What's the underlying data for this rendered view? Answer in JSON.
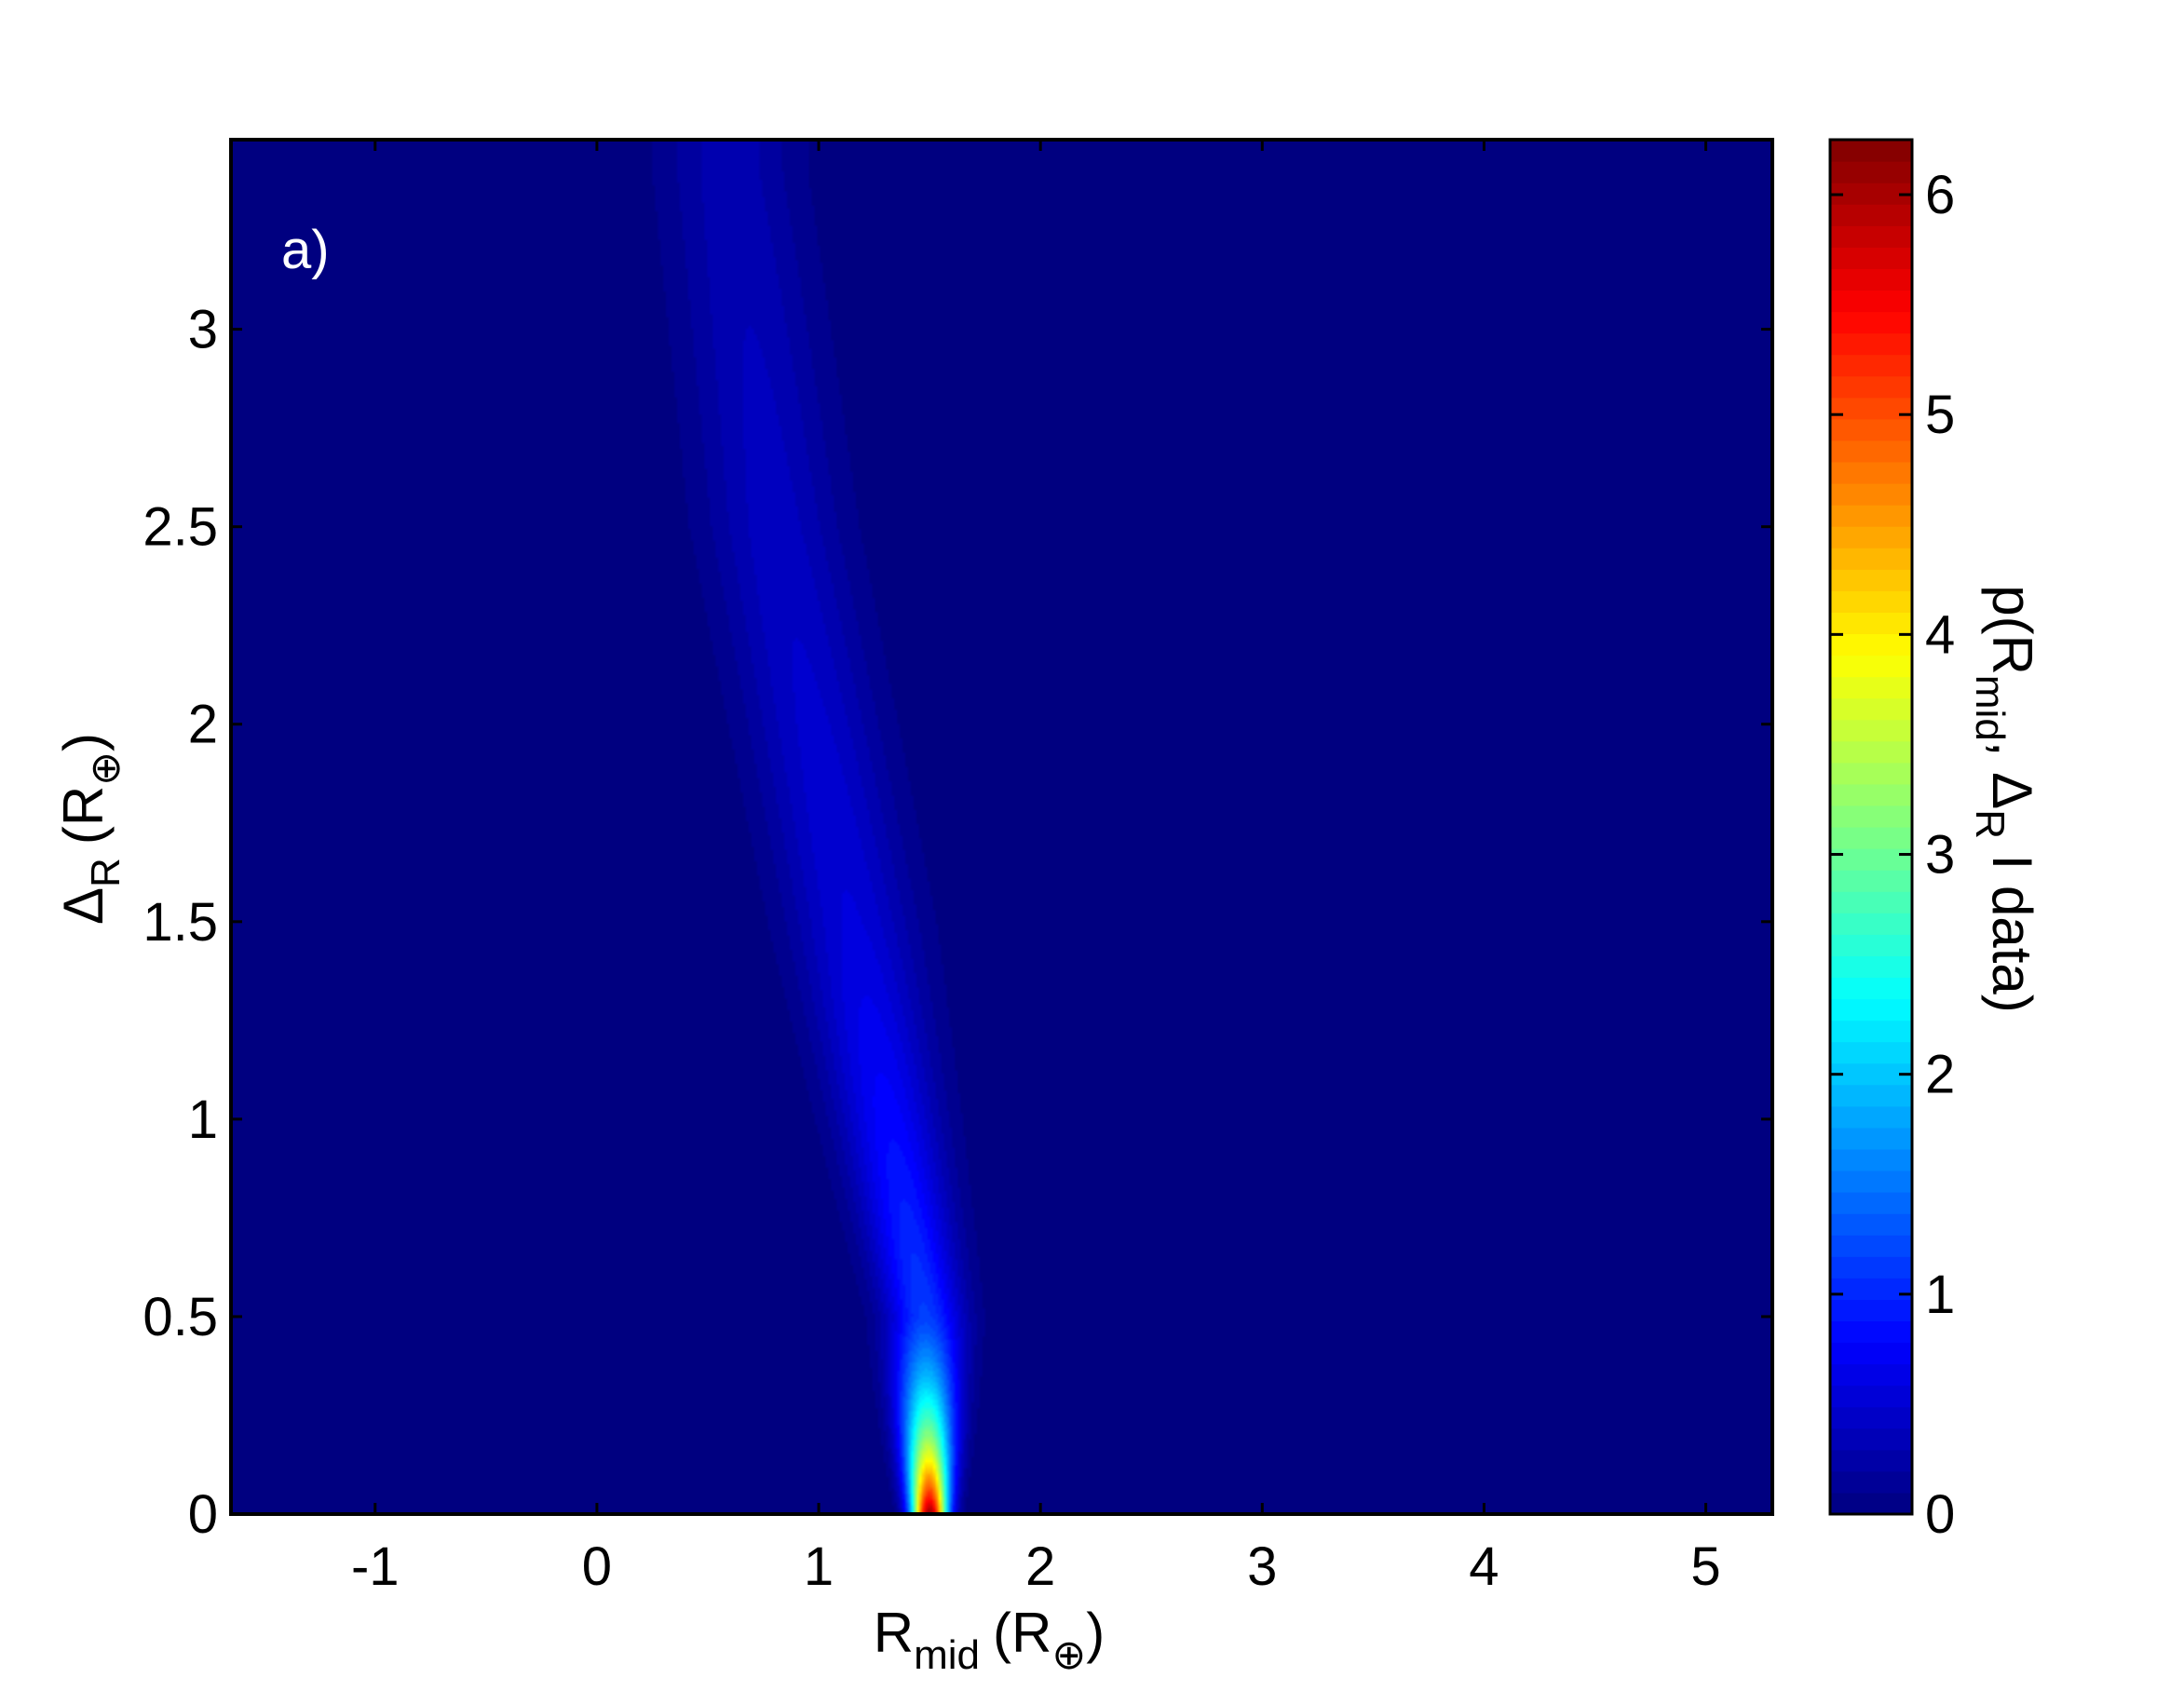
{
  "chart_data": {
    "type": "heatmap",
    "panel_label": "a)",
    "xlabel": {
      "main": "R",
      "sub": "mid",
      "unit_open": "(R",
      "unit_sub": "⊕",
      "unit_close": ")"
    },
    "ylabel": {
      "main": "Δ",
      "sub": "R",
      "unit_open": "(R",
      "unit_sub": "⊕",
      "unit_close": ")"
    },
    "colorbar_label": {
      "p1": "p(R",
      "s1": "mid",
      "p2": ", Δ",
      "s2": "R",
      "p3": " I data)"
    },
    "xlim": [
      -1.65,
      5.3
    ],
    "ylim": [
      0,
      3.48
    ],
    "xticks": [
      -1,
      0,
      1,
      2,
      3,
      4,
      5
    ],
    "xtick_labels": [
      "-1",
      "0",
      "1",
      "2",
      "3",
      "4",
      "5"
    ],
    "yticks": [
      0,
      0.5,
      1,
      1.5,
      2,
      2.5,
      3
    ],
    "ytick_labels": [
      "0",
      "0.5",
      "1",
      "1.5",
      "2",
      "2.5",
      "3"
    ],
    "clim": [
      0,
      6.25
    ],
    "colorbar_ticks": [
      0,
      1,
      2,
      3,
      4,
      5,
      6
    ],
    "colorbar_tick_labels": [
      "0",
      "1",
      "2",
      "3",
      "4",
      "5",
      "6"
    ],
    "colormap": "jet",
    "colormap_colors": [
      "#00008f",
      "#0000ff",
      "#00ffff",
      "#ffff00",
      "#ff0000",
      "#800000"
    ],
    "background_color": "#00008f",
    "ridge": {
      "description_points": [
        {
          "delta": 0.0,
          "r_mid_center": 1.5,
          "width": 0.055,
          "density": 6.2
        },
        {
          "delta": 0.5,
          "r_mid_center": 1.48,
          "width": 0.12,
          "density": 1.2
        },
        {
          "delta": 1.5,
          "r_mid_center": 1.15,
          "width": 0.2,
          "density": 0.6
        },
        {
          "delta": 2.5,
          "r_mid_center": 0.8,
          "width": 0.22,
          "density": 0.45
        },
        {
          "delta": 3.4,
          "r_mid_center": 0.6,
          "width": 0.22,
          "density": 0.35
        }
      ]
    }
  }
}
